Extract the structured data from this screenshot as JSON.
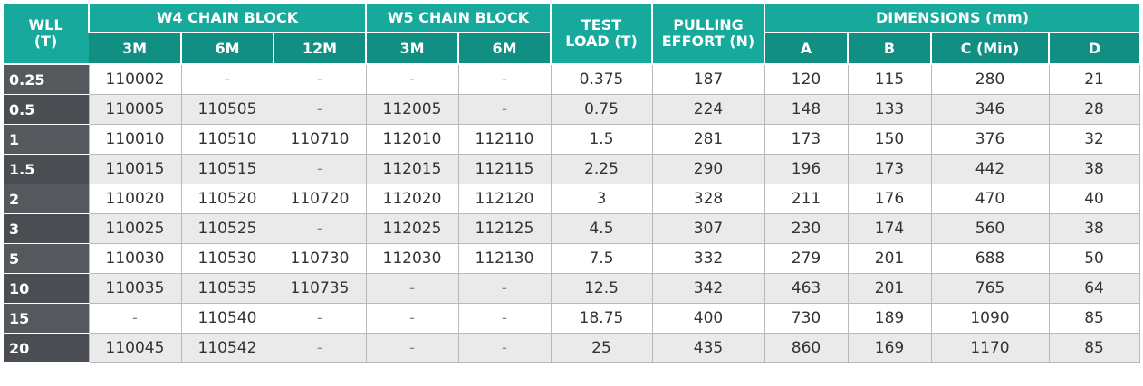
{
  "header": {
    "wll": [
      "WLL",
      "(T)"
    ],
    "w4": "W4 CHAIN BLOCK",
    "w5": "W5 CHAIN BLOCK",
    "test_load": [
      "TEST",
      "LOAD (T)"
    ],
    "pulling": [
      "PULLING",
      "EFFORT (N)"
    ],
    "dimensions": "DIMENSIONS (mm)",
    "w4_sub": [
      "3M",
      "6M",
      "12M"
    ],
    "w5_sub": [
      "3M",
      "6M"
    ],
    "dim_sub": [
      "A",
      "B",
      "C (Min)",
      "D"
    ]
  },
  "rows": [
    [
      "0.25",
      "110002",
      "-",
      "-",
      "-",
      "-",
      "0.375",
      "187",
      "120",
      "115",
      "280",
      "21"
    ],
    [
      "0.5",
      "110005",
      "110505",
      "-",
      "112005",
      "-",
      "0.75",
      "224",
      "148",
      "133",
      "346",
      "28"
    ],
    [
      "1",
      "110010",
      "110510",
      "110710",
      "112010",
      "112110",
      "1.5",
      "281",
      "173",
      "150",
      "376",
      "32"
    ],
    [
      "1.5",
      "110015",
      "110515",
      "-",
      "112015",
      "112115",
      "2.25",
      "290",
      "196",
      "173",
      "442",
      "38"
    ],
    [
      "2",
      "110020",
      "110520",
      "110720",
      "112020",
      "112120",
      "3",
      "328",
      "211",
      "176",
      "470",
      "40"
    ],
    [
      "3",
      "110025",
      "110525",
      "-",
      "112025",
      "112125",
      "4.5",
      "307",
      "230",
      "174",
      "560",
      "38"
    ],
    [
      "5",
      "110030",
      "110530",
      "110730",
      "112030",
      "112130",
      "7.5",
      "332",
      "279",
      "201",
      "688",
      "50"
    ],
    [
      "10",
      "110035",
      "110535",
      "110735",
      "-",
      "-",
      "12.5",
      "342",
      "463",
      "201",
      "765",
      "64"
    ],
    [
      "15",
      "-",
      "110540",
      "-",
      "-",
      "-",
      "18.75",
      "400",
      "730",
      "189",
      "1090",
      "85"
    ],
    [
      "20",
      "110045",
      "110542",
      "-",
      "-",
      "-",
      "25",
      "435",
      "860",
      "169",
      "1170",
      "85"
    ]
  ]
}
